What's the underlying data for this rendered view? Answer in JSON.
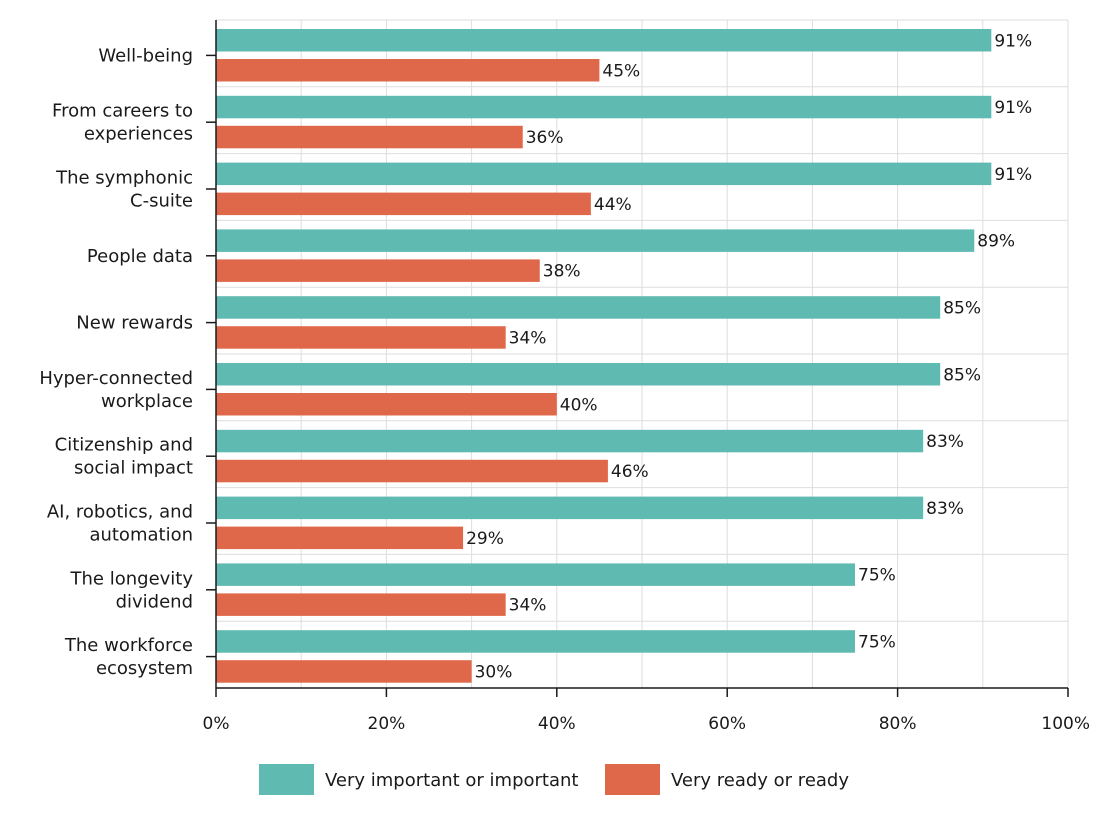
{
  "chart_data": {
    "type": "bar",
    "orientation": "horizontal",
    "title": "",
    "xlabel": "",
    "ylabel": "",
    "xlim": [
      0,
      100
    ],
    "x_ticks": [
      0,
      20,
      40,
      60,
      80,
      100
    ],
    "x_tick_labels": [
      "0%",
      "20%",
      "40%",
      "60%",
      "80%",
      "100%"
    ],
    "grid": true,
    "legend_position": "bottom",
    "categories": [
      [
        "Well-being"
      ],
      [
        "From careers to",
        "experiences"
      ],
      [
        "The symphonic",
        "C-suite"
      ],
      [
        "People data"
      ],
      [
        "New rewards"
      ],
      [
        "Hyper-connected",
        "workplace"
      ],
      [
        "Citizenship and",
        "social impact"
      ],
      [
        "AI, robotics, and",
        "automation"
      ],
      [
        "The longevity",
        "dividend"
      ],
      [
        "The workforce",
        "ecosystem"
      ]
    ],
    "series": [
      {
        "name": "Very important or important",
        "color": "#5fbab1",
        "values": [
          91,
          91,
          91,
          89,
          85,
          85,
          83,
          83,
          75,
          75
        ],
        "labels": [
          "91%",
          "91%",
          "91%",
          "89%",
          "85%",
          "85%",
          "83%",
          "83%",
          "75%",
          "75%"
        ]
      },
      {
        "name": "Very ready or ready",
        "color": "#e0684a",
        "values": [
          45,
          36,
          44,
          38,
          34,
          40,
          46,
          29,
          34,
          30
        ],
        "labels": [
          "45%",
          "36%",
          "44%",
          "38%",
          "34%",
          "40%",
          "46%",
          "29%",
          "34%",
          "30%"
        ]
      }
    ]
  }
}
